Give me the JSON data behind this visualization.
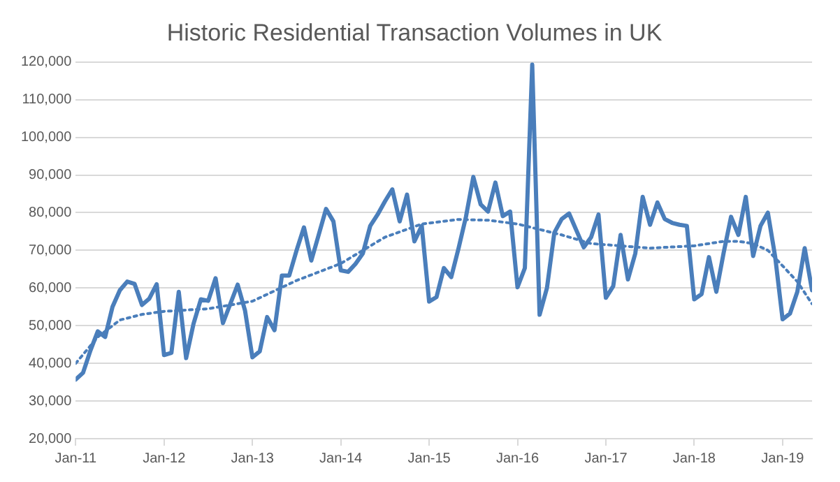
{
  "chart_data": {
    "type": "line",
    "title": "Historic Residential Transaction Volumes in UK",
    "x": [
      "2011-01",
      "2011-02",
      "2011-03",
      "2011-04",
      "2011-05",
      "2011-06",
      "2011-07",
      "2011-08",
      "2011-09",
      "2011-10",
      "2011-11",
      "2011-12",
      "2012-01",
      "2012-02",
      "2012-03",
      "2012-04",
      "2012-05",
      "2012-06",
      "2012-07",
      "2012-08",
      "2012-09",
      "2012-10",
      "2012-11",
      "2012-12",
      "2013-01",
      "2013-02",
      "2013-03",
      "2013-04",
      "2013-05",
      "2013-06",
      "2013-07",
      "2013-08",
      "2013-09",
      "2013-10",
      "2013-11",
      "2013-12",
      "2014-01",
      "2014-02",
      "2014-03",
      "2014-04",
      "2014-05",
      "2014-06",
      "2014-07",
      "2014-08",
      "2014-09",
      "2014-10",
      "2014-11",
      "2014-12",
      "2015-01",
      "2015-02",
      "2015-03",
      "2015-04",
      "2015-05",
      "2015-06",
      "2015-07",
      "2015-08",
      "2015-09",
      "2015-10",
      "2015-11",
      "2015-12",
      "2016-01",
      "2016-02",
      "2016-03",
      "2016-04",
      "2016-05",
      "2016-06",
      "2016-07",
      "2016-08",
      "2016-09",
      "2016-10",
      "2016-11",
      "2016-12",
      "2017-01",
      "2017-02",
      "2017-03",
      "2017-04",
      "2017-05",
      "2017-06",
      "2017-07",
      "2017-08",
      "2017-09",
      "2017-10",
      "2017-11",
      "2017-12",
      "2018-01",
      "2018-02",
      "2018-03",
      "2018-04",
      "2018-05",
      "2018-06",
      "2018-07",
      "2018-08",
      "2018-09",
      "2018-10",
      "2018-11",
      "2018-12",
      "2019-01",
      "2019-02",
      "2019-03",
      "2019-04",
      "2019-05"
    ],
    "series": [
      {
        "color": "#4a7ebb",
        "line_style": "solid",
        "values": [
          35700,
          37500,
          43400,
          48500,
          47000,
          55000,
          59400,
          61700,
          61100,
          55500,
          57200,
          61000,
          42200,
          42800,
          59000,
          41400,
          50500,
          57000,
          56600,
          62600,
          50700,
          55800,
          60900,
          54000,
          41600,
          43200,
          52300,
          48800,
          63300,
          63300,
          70000,
          76100,
          67300,
          74100,
          81000,
          77700,
          64700,
          64300,
          66400,
          69200,
          76500,
          79500,
          83000,
          86200,
          77700,
          84800,
          72400,
          76500,
          56400,
          57600,
          65300,
          62900,
          70600,
          78900,
          89500,
          82200,
          80300,
          88000,
          79100,
          80300,
          60200,
          65300,
          119300,
          52900,
          60000,
          74700,
          78300,
          79800,
          75300,
          70800,
          73500,
          79500,
          57400,
          60500,
          74100,
          62300,
          69200,
          84200,
          76800,
          82700,
          78300,
          77300,
          76800,
          76500,
          57000,
          58400,
          68200,
          59000,
          69400,
          78900,
          74100,
          84200,
          68500,
          76500,
          80000,
          68200,
          51700,
          53200,
          59000,
          70600,
          59400
        ]
      },
      {
        "color": "#4a7ebb",
        "line_style": "dotted",
        "x": [
          "2011-01",
          "2011-04",
          "2011-07",
          "2011-10",
          "2012-01",
          "2012-07",
          "2013-01",
          "2013-07",
          "2014-01",
          "2014-07",
          "2014-12",
          "2015-05",
          "2015-09",
          "2016-01",
          "2016-07",
          "2016-11",
          "2017-03",
          "2017-07",
          "2018-01",
          "2018-05",
          "2018-07",
          "2018-09",
          "2018-11",
          "2019-01",
          "2019-03",
          "2019-05"
        ],
        "values": [
          40000,
          47000,
          51500,
          53000,
          53800,
          54500,
          56500,
          62000,
          66500,
          73500,
          77000,
          78200,
          78000,
          77000,
          74100,
          71800,
          71200,
          70600,
          71200,
          72400,
          72400,
          71800,
          70000,
          65900,
          61700,
          55800
        ]
      }
    ],
    "xlim": [
      "2011-01",
      "2019-05"
    ],
    "xticks": [
      {
        "value": "2011-01",
        "label": "Jan-11"
      },
      {
        "value": "2012-01",
        "label": "Jan-12"
      },
      {
        "value": "2013-01",
        "label": "Jan-13"
      },
      {
        "value": "2014-01",
        "label": "Jan-14"
      },
      {
        "value": "2015-01",
        "label": "Jan-15"
      },
      {
        "value": "2016-01",
        "label": "Jan-16"
      },
      {
        "value": "2017-01",
        "label": "Jan-17"
      },
      {
        "value": "2018-01",
        "label": "Jan-18"
      },
      {
        "value": "2019-01",
        "label": "Jan-19"
      }
    ],
    "ylim": [
      20000,
      120000
    ],
    "yticks": [
      {
        "value": 20000,
        "label": "20,000"
      },
      {
        "value": 30000,
        "label": "30,000"
      },
      {
        "value": 40000,
        "label": "40,000"
      },
      {
        "value": 50000,
        "label": "50,000"
      },
      {
        "value": 60000,
        "label": "60,000"
      },
      {
        "value": 70000,
        "label": "70,000"
      },
      {
        "value": 80000,
        "label": "80,000"
      },
      {
        "value": 90000,
        "label": "90,000"
      },
      {
        "value": 100000,
        "label": "100,000"
      },
      {
        "value": 110000,
        "label": "110,000"
      },
      {
        "value": 120000,
        "label": "120,000"
      }
    ],
    "grid": "y",
    "legend": false,
    "marker": "none"
  }
}
